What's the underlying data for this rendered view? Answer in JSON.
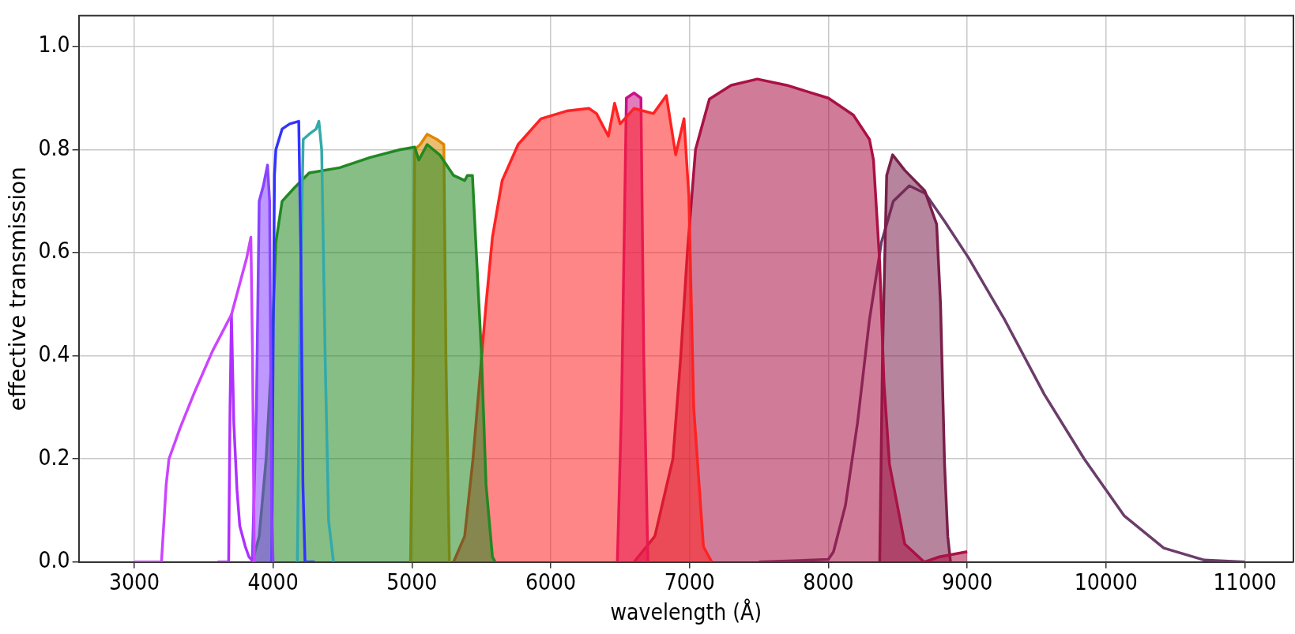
{
  "chart_data": {
    "type": "line",
    "xlabel": "wavelength (Å)",
    "ylabel": "effective transmission",
    "xlim": [
      2600,
      11350
    ],
    "ylim": [
      0,
      1.06
    ],
    "xticks": [
      3000,
      4000,
      5000,
      6000,
      7000,
      8000,
      9000,
      10000,
      11000
    ],
    "yticks": [
      {
        "value": 0,
        "label": "0.0"
      },
      {
        "value": 0.2,
        "label": "0.2"
      },
      {
        "value": 0.4,
        "label": "0.4"
      },
      {
        "value": 0.6,
        "label": "0.6"
      },
      {
        "value": 0.8,
        "label": "0.8"
      },
      {
        "value": 1,
        "label": "1.0"
      }
    ],
    "grid": true,
    "marker": "none",
    "series": [
      {
        "color": "#cc44ff",
        "x": [
          3000,
          3196,
          3230,
          3250,
          3330,
          3435,
          3565,
          3700,
          3760,
          3810,
          3840,
          3852,
          3865
        ],
        "values": [
          0,
          0,
          0.15,
          0.2,
          0.26,
          0.33,
          0.41,
          0.48,
          0.54,
          0.59,
          0.63,
          0.4,
          0
        ]
      },
      {
        "color": "#b030ff",
        "x": [
          3600,
          3680,
          3690,
          3700,
          3717,
          3740,
          3760,
          3800,
          3826,
          3860
        ],
        "values": [
          0,
          0,
          0.3,
          0.48,
          0.27,
          0.14,
          0.07,
          0.03,
          0.01,
          0
        ]
      },
      {
        "type": "area",
        "color": "#8844ff",
        "x": [
          3850,
          3880,
          3900,
          3930,
          3960,
          3975,
          3990,
          4000
        ],
        "values": [
          0,
          0.3,
          0.7,
          0.73,
          0.77,
          0.7,
          0.1,
          0
        ]
      },
      {
        "color": "#3333ff",
        "x": [
          3990,
          4000,
          4010,
          4020,
          4065,
          4120,
          4185,
          4200,
          4215,
          4230,
          4300
        ],
        "values": [
          0,
          0.4,
          0.75,
          0.8,
          0.84,
          0.85,
          0.855,
          0.6,
          0.15,
          0,
          0
        ]
      },
      {
        "color": "#33aaaa",
        "x": [
          4175,
          4195,
          4217,
          4260,
          4310,
          4330,
          4350,
          4375,
          4400,
          4435
        ],
        "values": [
          0,
          0.5,
          0.82,
          0.83,
          0.84,
          0.855,
          0.8,
          0.4,
          0.08,
          0
        ]
      },
      {
        "type": "area",
        "color": "#228822",
        "x": [
          3850,
          3900,
          3950,
          3990,
          4020,
          4065,
          4150,
          4260,
          4480,
          4700,
          4915,
          5020,
          5050,
          5110,
          5200,
          5300,
          5380,
          5400,
          5436,
          5464,
          5500,
          5534,
          5580,
          5600
        ],
        "values": [
          0,
          0.05,
          0.2,
          0.4,
          0.62,
          0.7,
          0.725,
          0.755,
          0.765,
          0.785,
          0.8,
          0.805,
          0.78,
          0.81,
          0.79,
          0.75,
          0.74,
          0.75,
          0.75,
          0.6,
          0.41,
          0.15,
          0.01,
          0
        ]
      },
      {
        "type": "area",
        "color": "#dd8800",
        "x": [
          4990,
          5010,
          5020,
          5060,
          5110,
          5180,
          5230,
          5245,
          5270
        ],
        "values": [
          0,
          0.4,
          0.8,
          0.81,
          0.83,
          0.82,
          0.81,
          0.4,
          0
        ]
      },
      {
        "type": "area",
        "color": "#ff2222",
        "x": [
          5300,
          5380,
          5440,
          5534,
          5580,
          5650,
          5765,
          5930,
          6115,
          6275,
          6330,
          6415,
          6460,
          6500,
          6600,
          6740,
          6833,
          6900,
          6960,
          6995,
          7030,
          7100,
          7160
        ],
        "values": [
          0,
          0.05,
          0.2,
          0.5,
          0.63,
          0.74,
          0.81,
          0.86,
          0.875,
          0.88,
          0.87,
          0.826,
          0.89,
          0.85,
          0.88,
          0.87,
          0.905,
          0.79,
          0.86,
          0.71,
          0.3,
          0.03,
          0
        ]
      },
      {
        "type": "area",
        "color": "#cc1188",
        "x": [
          6480,
          6510,
          6545,
          6600,
          6650,
          6670,
          6700
        ],
        "values": [
          0,
          0.3,
          0.9,
          0.91,
          0.9,
          0.4,
          0
        ]
      },
      {
        "type": "area",
        "color": "#aa1144",
        "x": [
          6600,
          6750,
          6880,
          6937,
          6984,
          7043,
          7143,
          7300,
          7488,
          7700,
          8000,
          8180,
          8296,
          8325,
          8370,
          8400,
          8440,
          8550,
          8690,
          8800,
          9000
        ],
        "values": [
          0,
          0.05,
          0.2,
          0.4,
          0.6,
          0.8,
          0.898,
          0.925,
          0.937,
          0.925,
          0.9,
          0.867,
          0.82,
          0.78,
          0.58,
          0.35,
          0.19,
          0.035,
          0,
          0.01,
          0.02
        ]
      },
      {
        "type": "area",
        "color": "#7a1f4a",
        "x": [
          8370,
          8390,
          8420,
          8463,
          8550,
          8695,
          8780,
          8808,
          8837,
          8860,
          8880
        ],
        "values": [
          0,
          0.4,
          0.75,
          0.79,
          0.76,
          0.72,
          0.655,
          0.5,
          0.19,
          0.05,
          0
        ]
      },
      {
        "color": "#6b3d6b",
        "x": [
          7500,
          8000,
          8037,
          8123,
          8210,
          8296,
          8382,
          8468,
          8583,
          8698,
          8840,
          9010,
          9270,
          9556,
          9843,
          10130,
          10416,
          10703,
          11000
        ],
        "values": [
          0,
          0.005,
          0.02,
          0.11,
          0.27,
          0.47,
          0.62,
          0.7,
          0.73,
          0.715,
          0.66,
          0.59,
          0.47,
          0.325,
          0.2,
          0.09,
          0.027,
          0.004,
          0
        ]
      }
    ]
  }
}
